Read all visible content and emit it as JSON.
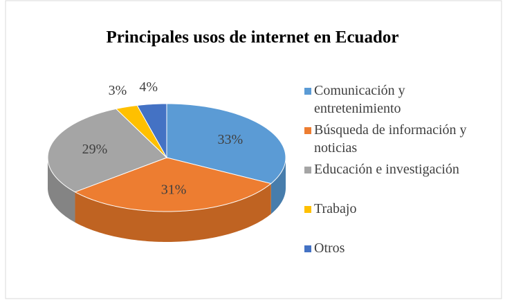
{
  "chart_data": {
    "type": "pie3d",
    "title": "Principales usos de internet en Ecuador",
    "categories": [
      "Comunicación y entretenimiento",
      "Búsqueda de información y noticias",
      "Educación e investigación",
      "Trabajo",
      "Otros"
    ],
    "values": [
      33,
      31,
      29,
      3,
      4
    ],
    "value_labels": [
      "33%",
      "31%",
      "29%",
      "3%",
      "4%"
    ],
    "colors": [
      "#5b9bd5",
      "#ed7d31",
      "#a5a5a5",
      "#ffc000",
      "#4472c4"
    ],
    "legend": "right"
  }
}
